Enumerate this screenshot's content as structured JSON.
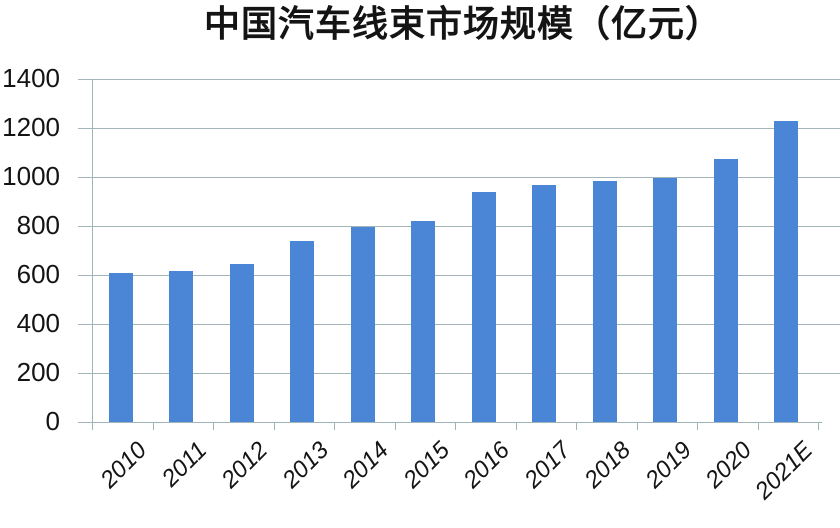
{
  "chart_data": {
    "type": "bar",
    "title": "中国汽车线束市场规模（亿元）",
    "unit": "亿元",
    "categories": [
      "2010",
      "2011",
      "2012",
      "2013",
      "2014",
      "2015",
      "2016",
      "2017",
      "2018",
      "2019",
      "2020",
      "2021E"
    ],
    "values": [
      610,
      615,
      645,
      740,
      795,
      820,
      940,
      968,
      985,
      995,
      1072,
      1228
    ],
    "xlabel": "",
    "ylabel": "",
    "ylim": [
      0,
      1400
    ],
    "ytick_step": 200,
    "ytick_labels": [
      "0",
      "200",
      "400",
      "600",
      "800",
      "1000",
      "1200",
      "1400"
    ],
    "grid": true,
    "legend": false,
    "legend_position": "none",
    "bar_color": "#4a86d5",
    "grid_color": "#a2b6ba",
    "axis_color": "#9fb3b8",
    "text_color": "#141414",
    "background": "#ffffff"
  }
}
